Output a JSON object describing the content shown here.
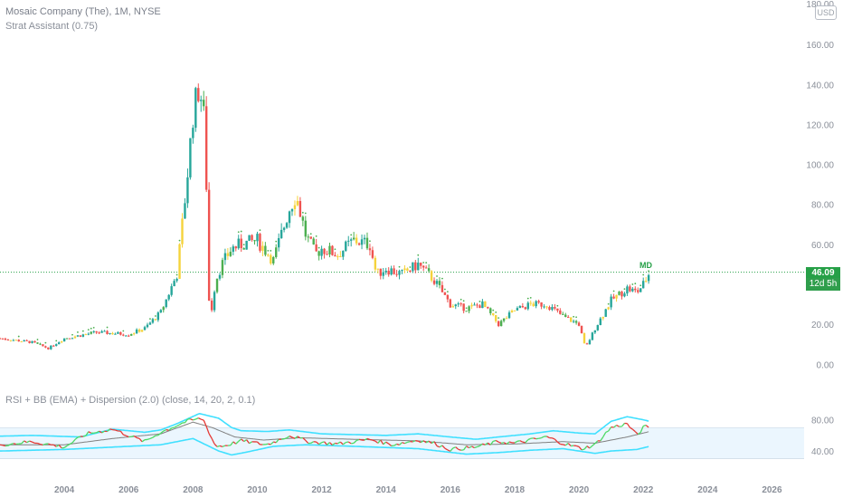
{
  "header": {
    "symbol_line": "Mosaic Company (The), 1M, NYSE",
    "indicator1": "Strat Assistant (0.75)",
    "indicator2": "RSI + BB (EMA) + Dispersion (2.0) (close, 14, 20, 2, 0.1)"
  },
  "currency_button": "USD",
  "last_price_label": "46.09",
  "countdown_label": "12d 5h",
  "signal_label": "MD",
  "colors": {
    "up": "#26a69a",
    "down": "#ef5350",
    "inside": "#f5d33c",
    "outside": "#4caf50",
    "rsi_up": "#4cd964",
    "rsi_down": "#e53935",
    "bb": "#40e0ff",
    "basis": "#808080",
    "band_fill": "#e3f2fd",
    "price_line": "#26a047",
    "axis_text": "#8a8f99"
  },
  "chart_data": [
    {
      "type": "candlestick",
      "title": "Mosaic Company (The), 1M, NYSE",
      "interval": "1M",
      "last_price": 46.09,
      "ylim": [
        -8,
        180
      ],
      "xlim": [
        2002.0,
        2027.0
      ],
      "y_ticks": [
        "0.00",
        "20.00",
        "40.00",
        "60.00",
        "80.00",
        "100.00",
        "120.00",
        "140.00",
        "160.00",
        "180.00"
      ],
      "x_ticks": [
        "2004",
        "2006",
        "2008",
        "2010",
        "2012",
        "2014",
        "2016",
        "2018",
        "2020",
        "2022",
        "2024",
        "2026"
      ],
      "series": [
        {
          "name": "close",
          "x": [
            2002.0,
            2003.0,
            2003.5,
            2004.0,
            2005.0,
            2006.0,
            2006.5,
            2007.0,
            2007.5,
            2007.8,
            2008.0,
            2008.2,
            2008.4,
            2008.45,
            2008.55,
            2008.7,
            2008.9,
            2009.2,
            2009.5,
            2010.0,
            2010.5,
            2011.0,
            2011.2,
            2011.5,
            2011.8,
            2012.0,
            2012.5,
            2013.0,
            2013.5,
            2013.7,
            2014.0,
            2014.5,
            2015.0,
            2015.5,
            2016.0,
            2016.5,
            2017.0,
            2017.5,
            2018.0,
            2018.5,
            2019.0,
            2019.5,
            2020.0,
            2020.2,
            2020.5,
            2021.0,
            2021.5,
            2021.8,
            2022.0,
            2022.2
          ],
          "y": [
            13,
            11,
            8,
            13,
            16,
            15,
            18,
            26,
            45,
            90,
            125,
            140,
            115,
            40,
            24,
            42,
            50,
            58,
            60,
            62,
            52,
            78,
            85,
            65,
            55,
            58,
            55,
            62,
            60,
            45,
            48,
            45,
            50,
            42,
            30,
            28,
            30,
            20,
            27,
            30,
            30,
            24,
            20,
            8,
            18,
            32,
            38,
            36,
            40,
            46.09
          ]
        }
      ]
    },
    {
      "type": "line",
      "title": "RSI + BB (EMA) + Dispersion (2.0) (close, 14, 20, 2, 0.1)",
      "ylim": [
        32,
        90
      ],
      "y_ticks": [
        "40.00",
        "80.00"
      ],
      "series": [
        {
          "name": "RSI",
          "x": [
            2002.0,
            2003.0,
            2004.0,
            2004.7,
            2005.5,
            2006.5,
            2007.0,
            2007.8,
            2008.3,
            2008.7,
            2009.0,
            2009.5,
            2010.3,
            2011.0,
            2011.6,
            2012.5,
            2013.5,
            2014.2,
            2015.0,
            2015.5,
            2016.0,
            2016.8,
            2017.5,
            2018.0,
            2019.0,
            2019.5,
            2020.1,
            2020.5,
            2021.0,
            2021.5,
            2021.8,
            2022.0,
            2022.2
          ],
          "y": [
            48,
            52,
            45,
            62,
            68,
            52,
            64,
            78,
            82,
            46,
            47,
            53,
            48,
            60,
            52,
            49,
            55,
            48,
            54,
            50,
            42,
            45,
            52,
            50,
            58,
            50,
            43,
            48,
            70,
            75,
            60,
            70,
            72
          ]
        },
        {
          "name": "BB upper",
          "x": [
            2002.0,
            2003.0,
            2004.5,
            2005.5,
            2006.5,
            2007.0,
            2007.5,
            2008.2,
            2008.8,
            2009.2,
            2009.5,
            2010.3,
            2011.0,
            2012.0,
            2013.0,
            2014.0,
            2015.0,
            2016.0,
            2016.8,
            2017.5,
            2018.5,
            2019.2,
            2020.0,
            2020.5,
            2021.0,
            2021.5,
            2022.0,
            2022.2
          ],
          "y": [
            59,
            60,
            58,
            68,
            64,
            67,
            75,
            88,
            82,
            70,
            66,
            65,
            67,
            62,
            61,
            60,
            62,
            58,
            55,
            58,
            62,
            66,
            63,
            62,
            78,
            84,
            80,
            78
          ]
        },
        {
          "name": "BB basis",
          "x": [
            2002.0,
            2004.0,
            2005.5,
            2007.0,
            2008.0,
            2008.6,
            2009.3,
            2010.2,
            2011.3,
            2013.0,
            2015.0,
            2016.5,
            2018.0,
            2019.5,
            2020.5,
            2021.5,
            2022.2
          ],
          "y": [
            48,
            48,
            56,
            62,
            77,
            70,
            58,
            54,
            57,
            55,
            53,
            48,
            49,
            52,
            50,
            58,
            65
          ]
        },
        {
          "name": "BB lower",
          "x": [
            2002.0,
            2004.0,
            2005.5,
            2007.0,
            2008.0,
            2008.8,
            2009.2,
            2009.6,
            2010.5,
            2011.5,
            2013.0,
            2015.0,
            2016.5,
            2017.5,
            2018.5,
            2019.5,
            2020.5,
            2021.0,
            2021.8,
            2022.2
          ],
          "y": [
            40,
            42,
            45,
            48,
            56,
            40,
            35,
            38,
            46,
            48,
            46,
            43,
            36,
            38,
            41,
            43,
            37,
            40,
            42,
            46
          ]
        }
      ]
    }
  ]
}
